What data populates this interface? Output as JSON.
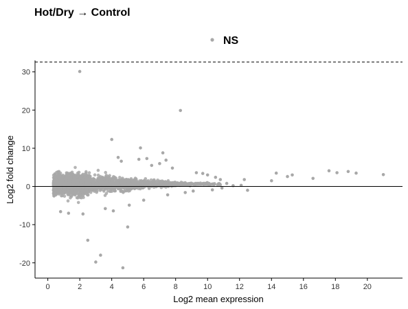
{
  "chart_data": {
    "type": "scatter",
    "title": "Hot/Dry → Control",
    "xlabel": "Log2 mean expression",
    "ylabel": "Log2 fold change",
    "xlim": [
      -0.8,
      22.2
    ],
    "ylim": [
      -24,
      33
    ],
    "x_ticks": [
      0,
      2,
      4,
      6,
      8,
      10,
      12,
      14,
      16,
      18,
      20
    ],
    "x_tick_labels": [
      "0",
      "2",
      "4",
      "6",
      "8",
      "10",
      "12",
      "14",
      "16",
      "18",
      "20"
    ],
    "y_ticks": [
      -20,
      -10,
      0,
      10,
      20,
      30
    ],
    "y_tick_labels": [
      "-20",
      "-10",
      "0",
      "10",
      "20",
      "30"
    ],
    "grid": false,
    "legend_position": "top-center",
    "reference_lines": {
      "horizontal_solid": 0,
      "horizontal_dashed": 32.6
    },
    "series": [
      {
        "name": "NS",
        "color": "#a8a8a8",
        "points": [
          [
            2.0,
            30.1
          ],
          [
            8.3,
            19.9
          ],
          [
            4.0,
            12.3
          ],
          [
            5.8,
            10.1
          ],
          [
            7.2,
            8.8
          ],
          [
            7.4,
            6.9
          ],
          [
            5.7,
            7.1
          ],
          [
            6.2,
            7.3
          ],
          [
            4.4,
            7.6
          ],
          [
            7.0,
            6.0
          ],
          [
            6.5,
            5.5
          ],
          [
            7.8,
            4.8
          ],
          [
            9.3,
            3.6
          ],
          [
            9.7,
            3.4
          ],
          [
            10.0,
            3.0
          ],
          [
            10.5,
            2.4
          ],
          [
            10.8,
            1.8
          ],
          [
            11.2,
            0.8
          ],
          [
            12.3,
            1.8
          ],
          [
            12.1,
            0.3
          ],
          [
            12.5,
            -1.0
          ],
          [
            14.3,
            3.5
          ],
          [
            15.0,
            2.6
          ],
          [
            15.3,
            3.0
          ],
          [
            14.0,
            1.5
          ],
          [
            16.6,
            2.1
          ],
          [
            17.6,
            4.1
          ],
          [
            18.1,
            3.6
          ],
          [
            18.8,
            3.9
          ],
          [
            19.3,
            3.5
          ],
          [
            21.0,
            3.1
          ],
          [
            5.0,
            -10.6
          ],
          [
            2.5,
            -14.1
          ],
          [
            3.3,
            -18.0
          ],
          [
            3.0,
            -19.8
          ],
          [
            4.7,
            -21.3
          ],
          [
            1.3,
            -7.0
          ],
          [
            0.8,
            -6.6
          ],
          [
            2.2,
            -7.2
          ],
          [
            4.1,
            -6.4
          ],
          [
            5.1,
            -4.9
          ],
          [
            6.0,
            -3.6
          ],
          [
            7.5,
            -2.2
          ],
          [
            8.6,
            -1.6
          ],
          [
            9.1,
            -1.2
          ],
          [
            10.3,
            -0.9
          ],
          [
            10.9,
            -0.4
          ],
          [
            11.6,
            0.2
          ],
          [
            3.6,
            -5.8
          ],
          [
            4.6,
            6.6
          ]
        ]
      }
    ]
  }
}
